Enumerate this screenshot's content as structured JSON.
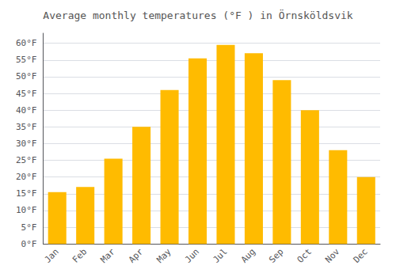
{
  "chart_data": {
    "type": "bar",
    "title": "Average monthly temperatures (°F ) in Örnsköldsvik",
    "categories": [
      "Jan",
      "Feb",
      "Mar",
      "Apr",
      "May",
      "Jun",
      "Jul",
      "Aug",
      "Sep",
      "Oct",
      "Nov",
      "Dec"
    ],
    "values": [
      15.5,
      17,
      25.5,
      35,
      46,
      55.5,
      59.5,
      57,
      49,
      40,
      28,
      20
    ],
    "color": "#FFBB00",
    "ylim": [
      0,
      63
    ],
    "yticks": [
      {
        "value": 0,
        "label": "0°F"
      },
      {
        "value": 5,
        "label": "5°F"
      },
      {
        "value": 10,
        "label": "10°F"
      },
      {
        "value": 15,
        "label": "15°F"
      },
      {
        "value": 20,
        "label": "20°F"
      },
      {
        "value": 25,
        "label": "25°F"
      },
      {
        "value": 30,
        "label": "30°F"
      },
      {
        "value": 35,
        "label": "35°F"
      },
      {
        "value": 40,
        "label": "40°F"
      },
      {
        "value": 45,
        "label": "45°F"
      },
      {
        "value": 50,
        "label": "50°F"
      },
      {
        "value": 55,
        "label": "55°F"
      },
      {
        "value": 60,
        "label": "60°F"
      }
    ],
    "grid": true
  }
}
